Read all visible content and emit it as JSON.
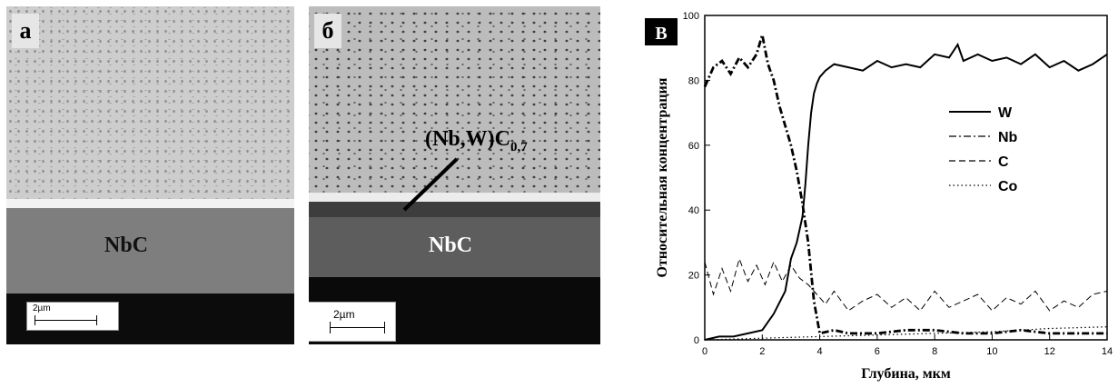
{
  "panel_a": {
    "letter": "а",
    "phase_label": "NbC",
    "scale_label": "2µm"
  },
  "panel_b": {
    "letter": "б",
    "phase_label": "NbC",
    "annotation_main": "(Nb,W)C",
    "annotation_sub": "0,7",
    "scale_label": "2µm"
  },
  "panel_c": {
    "letter": "В"
  },
  "chart_data": {
    "type": "line",
    "xlabel": "Глубина, мкм",
    "ylabel": "Относительная концентрация",
    "xlim": [
      0,
      14
    ],
    "ylim": [
      0,
      100
    ],
    "xticks": [
      0,
      2,
      4,
      6,
      8,
      10,
      12,
      14
    ],
    "yticks": [
      0,
      20,
      40,
      60,
      80,
      100
    ],
    "legend_position": "center-right",
    "series": [
      {
        "name": "W",
        "style": "solid",
        "x": [
          0,
          0.5,
          1.0,
          1.5,
          2.0,
          2.4,
          2.8,
          3.0,
          3.2,
          3.4,
          3.5,
          3.6,
          3.7,
          3.8,
          3.9,
          4.0,
          4.2,
          4.5,
          5.0,
          5.5,
          6.0,
          6.5,
          7.0,
          7.5,
          8.0,
          8.5,
          8.8,
          9.0,
          9.5,
          10.0,
          10.5,
          11.0,
          11.5,
          12.0,
          12.5,
          13.0,
          13.5,
          14.0
        ],
        "y": [
          0,
          1,
          1,
          2,
          3,
          8,
          15,
          25,
          30,
          38,
          48,
          60,
          70,
          76,
          79,
          81,
          83,
          85,
          84,
          83,
          86,
          84,
          85,
          84,
          88,
          87,
          91,
          86,
          88,
          86,
          87,
          85,
          88,
          84,
          86,
          83,
          85,
          88
        ]
      },
      {
        "name": "Nb",
        "style": "dash-dot",
        "x": [
          0,
          0.3,
          0.6,
          0.9,
          1.2,
          1.5,
          1.8,
          2.0,
          2.2,
          2.4,
          2.6,
          2.8,
          3.0,
          3.2,
          3.4,
          3.6,
          3.8,
          4.0,
          4.5,
          5.0,
          6.0,
          7.0,
          8.0,
          9.0,
          10.0,
          11.0,
          12.0,
          13.0,
          14.0
        ],
        "y": [
          78,
          84,
          86,
          82,
          87,
          84,
          88,
          94,
          85,
          80,
          72,
          66,
          60,
          52,
          42,
          30,
          12,
          2,
          3,
          2,
          2,
          3,
          3,
          2,
          2,
          3,
          2,
          2,
          2
        ]
      },
      {
        "name": "C",
        "style": "dashed",
        "x": [
          0,
          0.3,
          0.6,
          0.9,
          1.2,
          1.5,
          1.8,
          2.1,
          2.4,
          2.7,
          3.0,
          3.3,
          3.6,
          3.9,
          4.2,
          4.5,
          5.0,
          5.5,
          6.0,
          6.5,
          7.0,
          7.5,
          8.0,
          8.5,
          9.0,
          9.5,
          10.0,
          10.5,
          11.0,
          11.5,
          12.0,
          12.5,
          13.0,
          13.5,
          14.0
        ],
        "y": [
          24,
          14,
          22,
          15,
          25,
          18,
          23,
          17,
          24,
          18,
          23,
          19,
          17,
          14,
          11,
          15,
          9,
          12,
          14,
          10,
          13,
          9,
          15,
          10,
          12,
          14,
          9,
          13,
          11,
          15,
          9,
          12,
          10,
          14,
          15
        ]
      },
      {
        "name": "Co",
        "style": "dotted",
        "x": [
          0,
          2,
          4,
          6,
          8,
          10,
          12,
          14
        ],
        "y": [
          0,
          0.5,
          1,
          1.5,
          2,
          2.5,
          3.5,
          4
        ]
      }
    ]
  }
}
